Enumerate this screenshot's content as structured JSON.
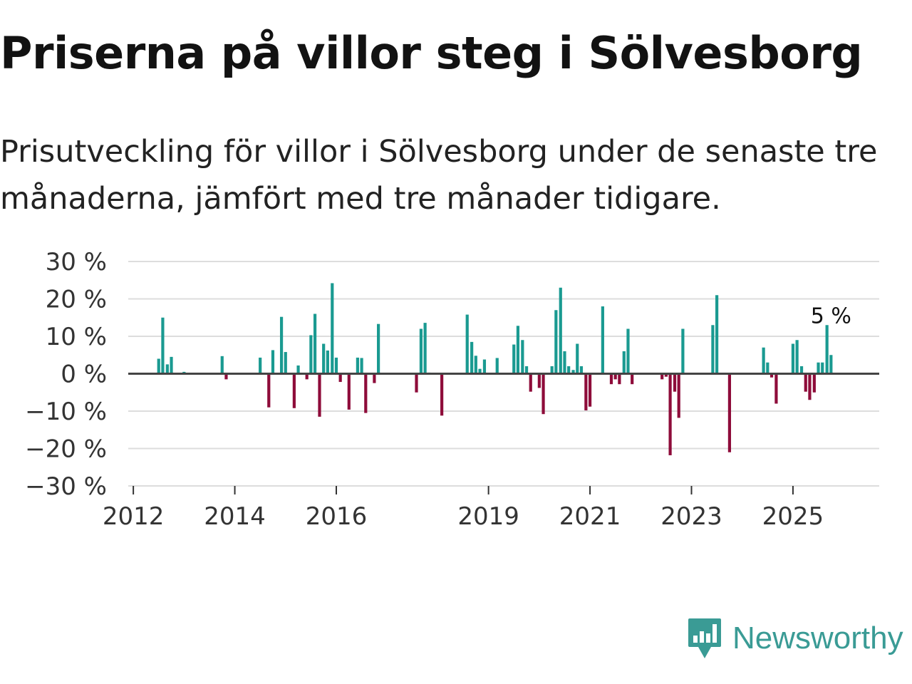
{
  "title": "Priserna på villor steg i Sölvesborg",
  "subtitle": "Prisutveckling för villor i Sölvesborg under de senaste tre månaderna, jämfört med tre månader tidigare.",
  "brand": {
    "name": "Newsworthy",
    "color": "#3a9b95",
    "icon": "bar-chart-speech-bubble-icon"
  },
  "colors": {
    "positive": "#1a9a91",
    "negative": "#8e0c3a",
    "zero_line": "#444444",
    "grid": "#dddddd"
  },
  "chart_data": {
    "type": "bar",
    "title": "",
    "xlabel": "",
    "ylabel": "",
    "ylim": [
      -30,
      30
    ],
    "x_range": [
      2011.9,
      2026.7
    ],
    "y_ticks": [
      30,
      20,
      10,
      0,
      -10,
      -20,
      -30
    ],
    "y_tick_labels": [
      "30 %",
      "20 %",
      "10 %",
      "0 %",
      "−10 %",
      "−20 %",
      "−30 %"
    ],
    "x_ticks": [
      2012,
      2014,
      2016,
      2019,
      2021,
      2023,
      2025
    ],
    "x_tick_labels": [
      "2012",
      "2014",
      "2016",
      "2019",
      "2021",
      "2023",
      "2025"
    ],
    "annotation": {
      "text": "5 %",
      "x": 2025.75,
      "y": 5
    },
    "x": [
      2012.5,
      2012.58,
      2012.67,
      2012.75,
      2013.0,
      2013.75,
      2013.83,
      2014.5,
      2014.67,
      2014.75,
      2014.92,
      2015.0,
      2015.17,
      2015.25,
      2015.42,
      2015.5,
      2015.58,
      2015.67,
      2015.75,
      2015.83,
      2015.92,
      2016.0,
      2016.08,
      2016.25,
      2016.42,
      2016.5,
      2016.58,
      2016.75,
      2016.83,
      2017.58,
      2017.67,
      2017.75,
      2017.83,
      2018.08,
      2018.58,
      2018.67,
      2018.75,
      2018.83,
      2018.92,
      2019.17,
      2019.5,
      2019.58,
      2019.67,
      2019.75,
      2019.83,
      2020.0,
      2020.08,
      2020.25,
      2020.33,
      2020.42,
      2020.5,
      2020.58,
      2020.67,
      2020.75,
      2020.83,
      2020.92,
      2021.0,
      2021.25,
      2021.42,
      2021.5,
      2021.58,
      2021.67,
      2021.75,
      2021.83,
      2022.42,
      2022.5,
      2022.58,
      2022.67,
      2022.75,
      2022.83,
      2023.42,
      2023.5,
      2023.75,
      2024.42,
      2024.5,
      2024.58,
      2024.67,
      2025.0,
      2025.08,
      2025.17,
      2025.25,
      2025.33,
      2025.42,
      2025.5,
      2025.58,
      2025.67,
      2025.75
    ],
    "values": [
      4,
      15,
      2.5,
      4.5,
      0.5,
      4.7,
      -1.5,
      4.3,
      -9,
      6.3,
      15.2,
      5.8,
      -9.2,
      2.2,
      -1.5,
      10.3,
      16,
      -11.5,
      8,
      6.2,
      24.2,
      4.3,
      -2.2,
      -9.6,
      4.3,
      4.2,
      -10.5,
      -2.5,
      13.3,
      -5,
      12,
      13.6,
      0.3,
      -11.2,
      15.8,
      8.5,
      4.8,
      1.3,
      3.8,
      4.2,
      7.8,
      12.8,
      9,
      2,
      -4.8,
      -3.8,
      -10.8,
      2,
      17,
      23,
      6,
      2,
      1,
      8,
      2,
      -9.8,
      -8.8,
      18,
      -2.8,
      -1.5,
      -2.8,
      6,
      12,
      -2.8,
      -1.5,
      -0.8,
      -21.8,
      -4.8,
      -11.8,
      12,
      13,
      21,
      -21,
      7,
      3,
      -1,
      -8,
      8,
      9,
      2,
      -4.8,
      -7,
      -5,
      3,
      3,
      13,
      5
    ]
  }
}
